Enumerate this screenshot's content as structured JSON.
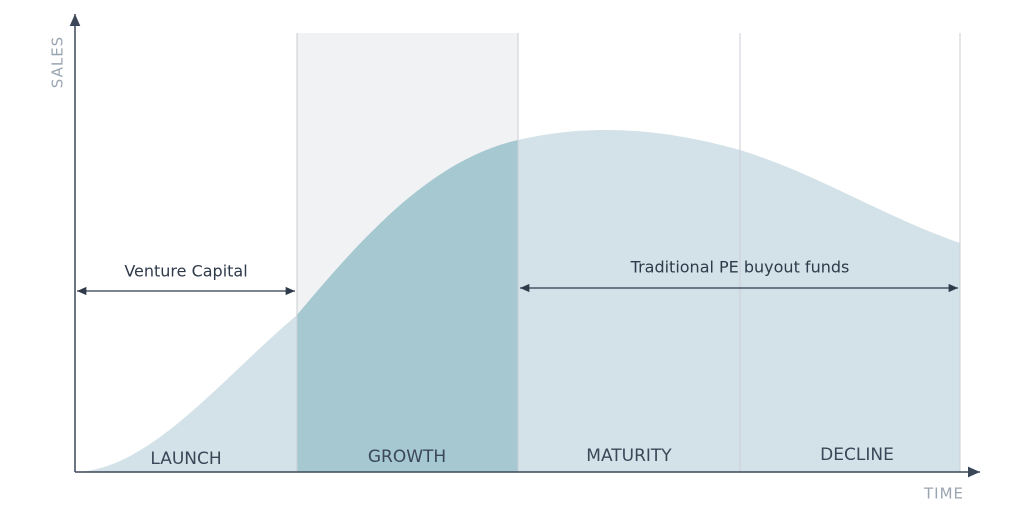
{
  "axes": {
    "y_label": "SALES",
    "x_label": "TIME"
  },
  "stages": [
    "LAUNCH",
    "GROWTH",
    "MATURITY",
    "DECLINE"
  ],
  "funding": [
    "Venture Capital",
    "Traditional PE buyout funds"
  ]
}
